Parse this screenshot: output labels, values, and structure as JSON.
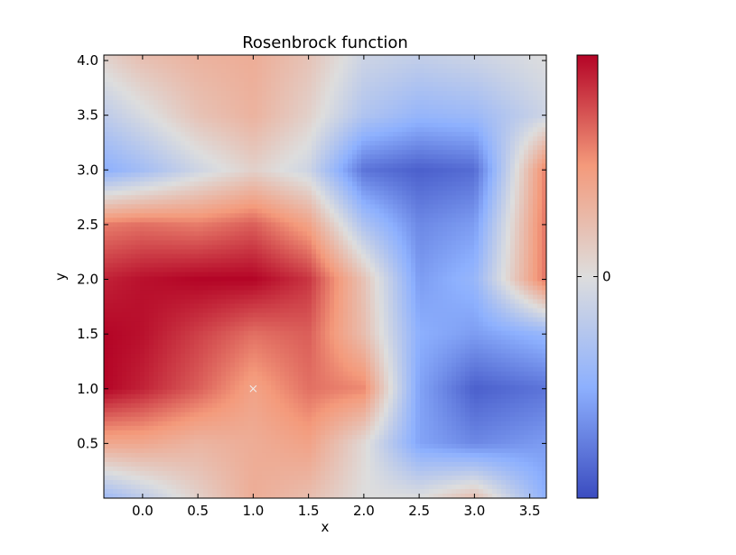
{
  "chart_data": {
    "type": "heatmap",
    "title": "Rosenbrock function",
    "xlabel": "x",
    "ylabel": "y",
    "xlim": [
      -0.35,
      3.65
    ],
    "ylim": [
      0.0,
      4.05
    ],
    "xticks": [
      0.0,
      0.5,
      1.0,
      1.5,
      2.0,
      2.5,
      3.0,
      3.5
    ],
    "xtick_labels": [
      "0.0",
      "0.5",
      "1.0",
      "1.5",
      "2.0",
      "2.5",
      "3.0",
      "3.5"
    ],
    "yticks": [
      0.5,
      1.0,
      1.5,
      2.0,
      2.5,
      3.0,
      3.5,
      4.0
    ],
    "ytick_labels": [
      "0.5",
      "1.0",
      "1.5",
      "2.0",
      "2.5",
      "3.0",
      "3.5",
      "4.0"
    ],
    "colormap": "coolwarm",
    "colormap_stops": [
      "#3b4cc0",
      "#8db0fe",
      "#dddddd",
      "#f49a7b",
      "#b40426"
    ],
    "colorbar": {
      "ticks": [
        0.5
      ],
      "tick_labels": [
        "0"
      ]
    },
    "grid": false,
    "x": [
      -0.35,
      0.0,
      0.5,
      1.0,
      1.5,
      2.0,
      2.5,
      3.0,
      3.65
    ],
    "y": [
      4.05,
      3.5,
      3.0,
      2.5,
      2.0,
      1.5,
      1.0,
      0.5,
      0.0
    ],
    "z": [
      [
        0.55,
        0.62,
        0.66,
        0.68,
        0.6,
        0.45,
        0.42,
        0.45,
        0.5
      ],
      [
        0.4,
        0.48,
        0.6,
        0.66,
        0.55,
        0.36,
        0.28,
        0.3,
        0.45
      ],
      [
        0.25,
        0.32,
        0.45,
        0.55,
        0.45,
        0.1,
        0.05,
        0.08,
        0.8
      ],
      [
        0.8,
        0.82,
        0.8,
        0.85,
        0.72,
        0.35,
        0.15,
        0.2,
        0.82
      ],
      [
        0.95,
        0.98,
        1.0,
        1.0,
        0.92,
        0.6,
        0.2,
        0.28,
        0.82
      ],
      [
        1.0,
        0.98,
        0.9,
        0.82,
        0.85,
        0.62,
        0.25,
        0.2,
        0.28
      ],
      [
        1.0,
        0.95,
        0.85,
        0.72,
        0.82,
        0.78,
        0.22,
        0.05,
        0.1
      ],
      [
        0.7,
        0.7,
        0.65,
        0.68,
        0.72,
        0.52,
        0.22,
        0.15,
        0.2
      ],
      [
        0.3,
        0.4,
        0.55,
        0.68,
        0.62,
        0.5,
        0.5,
        0.62,
        0.25
      ]
    ],
    "marker": {
      "x": 1.0,
      "y": 1.0,
      "symbol": "x",
      "color": "#f0f0f0"
    }
  }
}
